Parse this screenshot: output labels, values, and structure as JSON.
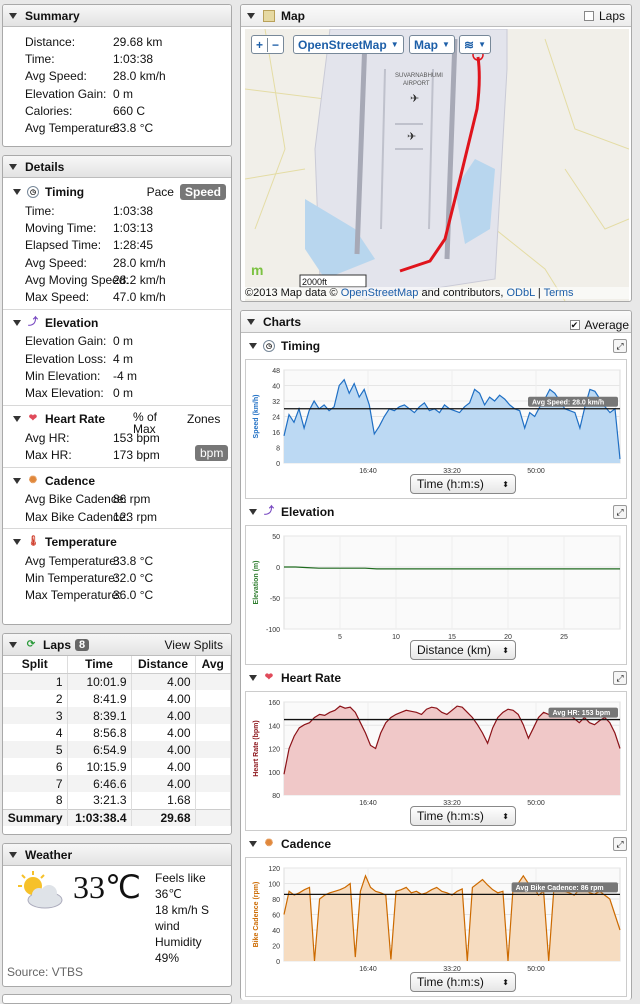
{
  "summary": {
    "title": "Summary",
    "rows": [
      {
        "k": "Distance:",
        "v": "29.68 km"
      },
      {
        "k": "Time:",
        "v": "1:03:38"
      },
      {
        "k": "Avg Speed:",
        "v": "28.0 km/h"
      },
      {
        "k": "Elevation Gain:",
        "v": "0 m"
      },
      {
        "k": "Calories:",
        "v": "660 C"
      },
      {
        "k": "Avg Temperature:",
        "v": "33.8 °C"
      }
    ]
  },
  "details": {
    "title": "Details",
    "timing": {
      "title": "Timing",
      "pace": "Pace",
      "speed": "Speed",
      "rows": [
        {
          "k": "Time:",
          "v": "1:03:38"
        },
        {
          "k": "Moving Time:",
          "v": "1:03:13"
        },
        {
          "k": "Elapsed Time:",
          "v": "1:28:45"
        },
        {
          "k": "Avg Speed:",
          "v": "28.0 km/h"
        },
        {
          "k": "Avg Moving Speed:",
          "v": "28.2 km/h"
        },
        {
          "k": "Max Speed:",
          "v": "47.0 km/h"
        }
      ]
    },
    "elevation": {
      "title": "Elevation",
      "rows": [
        {
          "k": "Elevation Gain:",
          "v": "0 m"
        },
        {
          "k": "Elevation Loss:",
          "v": "4 m"
        },
        {
          "k": "Min Elevation:",
          "v": "-4 m"
        },
        {
          "k": "Max Elevation:",
          "v": "0 m"
        }
      ]
    },
    "heart": {
      "title": "Heart Rate",
      "pct": "% of Max",
      "zones": "Zones",
      "bpm": "bpm",
      "rows": [
        {
          "k": "Avg HR:",
          "v": "153 bpm"
        },
        {
          "k": "Max HR:",
          "v": "173 bpm"
        }
      ]
    },
    "cadence": {
      "title": "Cadence",
      "rows": [
        {
          "k": "Avg Bike Cadence:",
          "v": "86 rpm"
        },
        {
          "k": "Max Bike Cadence:",
          "v": "123 rpm"
        }
      ]
    },
    "temperature": {
      "title": "Temperature",
      "rows": [
        {
          "k": "Avg Temperature:",
          "v": "33.8 °C"
        },
        {
          "k": "Min Temperature:",
          "v": "32.0 °C"
        },
        {
          "k": "Max Temperature:",
          "v": "36.0 °C"
        }
      ]
    }
  },
  "laps": {
    "title": "Laps",
    "count": "8",
    "view": "View Splits",
    "headers": [
      "Split",
      "Time",
      "Distance",
      "Avg"
    ],
    "rows": [
      [
        "1",
        "10:01.9",
        "4.00"
      ],
      [
        "2",
        "8:41.9",
        "4.00"
      ],
      [
        "3",
        "8:39.1",
        "4.00"
      ],
      [
        "4",
        "8:56.8",
        "4.00"
      ],
      [
        "5",
        "6:54.9",
        "4.00"
      ],
      [
        "6",
        "10:15.9",
        "4.00"
      ],
      [
        "7",
        "6:46.6",
        "4.00"
      ],
      [
        "8",
        "3:21.3",
        "1.68"
      ]
    ],
    "summary": [
      "Summary",
      "1:03:38.4",
      "29.68"
    ]
  },
  "weather": {
    "title": "Weather",
    "temp": "33℃",
    "feels": "Feels like",
    "feels_val": "36℃",
    "wind": "18 km/h S",
    "wind2": "wind",
    "humidity": "Humidity",
    "humidity_val": "49%",
    "source": "Source: VTBS"
  },
  "map": {
    "title": "Map",
    "laps": "Laps",
    "zoom_in": "+",
    "zoom_out": "−",
    "layer": "OpenStreetMap",
    "type": "Map",
    "airport": "SUVARNABHUMI AIRPORT",
    "scale": "2000ft",
    "attrib_pre": "©2013 Map data ©",
    "attrib_osm": "OpenStreetMap",
    "attrib_mid": "and contributors,",
    "attrib_odbl": "ODbL",
    "attrib_sep": "|",
    "attrib_terms": "Terms"
  },
  "charts": {
    "title": "Charts",
    "average": "Average",
    "timing": {
      "title": "Timing",
      "ylabel": "Speed (km/h)",
      "xsel": "Time (h:m:s)",
      "badge": "Avg Speed: 28.0 km/h",
      "ticks": [
        "48",
        "40",
        "32",
        "24",
        "16",
        "8",
        "0"
      ],
      "xticks": [
        "16:40",
        "33:20",
        "50:00"
      ]
    },
    "elevation": {
      "title": "Elevation",
      "ylabel": "Elevation (m)",
      "xsel": "Distance (km)",
      "ticks": [
        "50",
        "0",
        "-50",
        "-100"
      ],
      "xticks": [
        "5",
        "10",
        "15",
        "20",
        "25"
      ]
    },
    "heart": {
      "title": "Heart Rate",
      "ylabel": "Heart Rate (bpm)",
      "xsel": "Time (h:m:s)",
      "badge": "Avg HR: 153 bpm",
      "ticks": [
        "160",
        "140",
        "120",
        "100",
        "80"
      ],
      "xticks": [
        "16:40",
        "33:20",
        "50:00"
      ]
    },
    "cadence": {
      "title": "Cadence",
      "ylabel": "Bike Cadence (rpm)",
      "xsel": "Time (h:m:s)",
      "badge": "Avg Bike Cadence: 86 rpm",
      "ticks": [
        "120",
        "100",
        "80",
        "60",
        "40",
        "20",
        "0"
      ],
      "xticks": [
        "16:40",
        "33:20",
        "50:00"
      ]
    }
  },
  "chart_data": [
    {
      "type": "area",
      "title": "Timing",
      "ylabel": "Speed (km/h)",
      "xlabel": "Time (h:m:s)",
      "ylim": [
        0,
        48
      ],
      "average": 28.0,
      "series": [
        {
          "values": [
            14,
            25,
            21,
            28,
            18,
            27,
            32,
            28,
            30,
            27,
            29,
            40,
            43,
            36,
            41,
            34,
            38,
            30,
            15,
            19,
            24,
            28,
            27,
            29,
            30,
            28,
            26,
            29,
            31,
            27,
            28,
            26,
            30,
            28,
            27,
            26,
            29,
            31,
            38,
            36,
            30,
            34,
            32,
            35,
            33,
            30,
            28,
            27,
            18,
            26,
            24,
            29,
            33,
            38,
            36,
            32,
            28,
            27,
            26,
            18,
            29,
            38,
            37,
            33,
            29,
            26,
            28,
            2
          ]
        }
      ]
    },
    {
      "type": "line",
      "title": "Elevation",
      "ylabel": "Elevation (m)",
      "xlabel": "Distance (km)",
      "ylim": [
        -100,
        50
      ],
      "series": [
        {
          "values": [
            0,
            0,
            -1,
            -2,
            -2,
            -2,
            -2,
            -2,
            -3,
            -3,
            -3,
            -3,
            -3,
            -3,
            -3,
            -3,
            -3,
            -3,
            -3,
            -3,
            -3,
            -3,
            -3,
            -3,
            -3,
            -3,
            -3,
            -3,
            -3,
            -3
          ]
        }
      ]
    },
    {
      "type": "area",
      "title": "Heart Rate",
      "ylabel": "Heart Rate (bpm)",
      "xlabel": "Time (h:m:s)",
      "ylim": [
        80,
        170
      ],
      "average": 153,
      "series": [
        {
          "values": [
            100,
            125,
            137,
            145,
            148,
            150,
            155,
            158,
            157,
            160,
            162,
            166,
            164,
            165,
            160,
            150,
            140,
            128,
            125,
            140,
            150,
            155,
            158,
            160,
            162,
            161,
            160,
            158,
            163,
            165,
            164,
            160,
            158,
            162,
            166,
            165,
            160,
            155,
            148,
            140,
            130,
            145,
            155,
            160,
            163,
            162,
            158,
            148,
            135,
            145,
            155,
            160,
            158,
            156,
            158,
            160,
            158,
            154,
            150,
            155,
            150,
            148,
            152,
            155,
            150,
            140,
            125
          ]
        }
      ]
    },
    {
      "type": "area",
      "title": "Cadence",
      "ylabel": "Bike Cadence (rpm)",
      "xlabel": "Time (h:m:s)",
      "ylim": [
        0,
        120
      ],
      "average": 86,
      "series": [
        {
          "values": [
            60,
            90,
            85,
            88,
            92,
            95,
            0,
            80,
            85,
            88,
            90,
            92,
            95,
            100,
            5,
            90,
            110,
            95,
            90,
            88,
            85,
            2,
            90,
            92,
            95,
            88,
            90,
            86,
            88,
            92,
            95,
            90,
            88,
            85,
            90,
            93,
            0,
            95,
            100,
            105,
            98,
            92,
            88,
            90,
            0,
            95,
            100,
            110,
            100,
            95,
            85,
            90,
            0,
            92,
            95,
            90,
            88,
            85,
            92,
            95,
            88,
            86,
            90,
            85,
            80,
            60,
            40
          ]
        }
      ]
    }
  ]
}
